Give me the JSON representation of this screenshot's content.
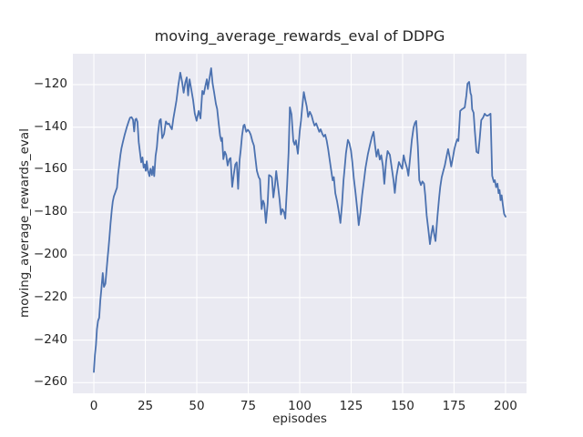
{
  "chart_data": {
    "type": "line",
    "title": "moving_average_rewards_eval of DDPG",
    "xlabel": "episodes",
    "ylabel": "moving_average_rewards_eval",
    "xlim": [
      -10.2,
      210.2
    ],
    "ylim": [
      -265.0,
      -105.5
    ],
    "x_ticks": [
      0,
      25,
      50,
      75,
      100,
      125,
      150,
      175,
      200
    ],
    "x_tick_labels": [
      "0",
      "25",
      "50",
      "75",
      "100",
      "125",
      "150",
      "175",
      "200"
    ],
    "y_ticks": [
      -120,
      -140,
      -160,
      -180,
      -200,
      -220,
      -240,
      -260
    ],
    "y_tick_labels": [
      "−120",
      "−140",
      "−160",
      "−180",
      "−200",
      "−220",
      "−240",
      "−260"
    ],
    "grid": true,
    "legend": "none",
    "style": {
      "line_color": "#4C72B0",
      "plot_bg": "#EAEAF2",
      "grid_color": "#FFFFFF",
      "text_color": "#262626",
      "figure_bg": "#FFFFFF",
      "line_width": 1.8
    },
    "series": [
      {
        "name": "moving_average_rewards_eval",
        "points": [
          [
            0,
            -255
          ],
          [
            0.5,
            -247
          ],
          [
            1,
            -242.5
          ],
          [
            1.5,
            -235
          ],
          [
            2,
            -231
          ],
          [
            2.6,
            -229.5
          ],
          [
            3.1,
            -221.5
          ],
          [
            3.6,
            -216.5
          ],
          [
            4.3,
            -208.5
          ],
          [
            4.9,
            -215
          ],
          [
            5.6,
            -213.5
          ],
          [
            6.1,
            -208
          ],
          [
            6.6,
            -202
          ],
          [
            7.1,
            -197
          ],
          [
            7.6,
            -191.5
          ],
          [
            8.1,
            -185.5
          ],
          [
            8.7,
            -179
          ],
          [
            9.2,
            -175
          ],
          [
            9.7,
            -172.5
          ],
          [
            10.3,
            -171
          ],
          [
            10.8,
            -169.5
          ],
          [
            11.2,
            -168.5
          ],
          [
            11.7,
            -162.5
          ],
          [
            12.3,
            -158
          ],
          [
            12.9,
            -153
          ],
          [
            13.4,
            -150
          ],
          [
            14.1,
            -147
          ],
          [
            15,
            -143.5
          ],
          [
            16,
            -140
          ],
          [
            17,
            -137
          ],
          [
            17.6,
            -135.5
          ],
          [
            18.3,
            -135.3
          ],
          [
            19,
            -136.5
          ],
          [
            19.6,
            -142
          ],
          [
            20.1,
            -136.5
          ],
          [
            20.6,
            -136
          ],
          [
            21.2,
            -137.5
          ],
          [
            21.8,
            -147
          ],
          [
            22.4,
            -152
          ],
          [
            23,
            -156.5
          ],
          [
            23.6,
            -154.2
          ],
          [
            24.2,
            -159
          ],
          [
            24.7,
            -157.5
          ],
          [
            25.2,
            -160.5
          ],
          [
            25.7,
            -156
          ],
          [
            26.2,
            -160
          ],
          [
            27,
            -163
          ],
          [
            27.5,
            -159.5
          ],
          [
            28.2,
            -162.5
          ],
          [
            28.7,
            -158.5
          ],
          [
            29.3,
            -163
          ],
          [
            30,
            -153.5
          ],
          [
            30.6,
            -149.5
          ],
          [
            31.1,
            -143.5
          ],
          [
            31.9,
            -137
          ],
          [
            32.5,
            -136.2
          ],
          [
            33.2,
            -145.2
          ],
          [
            34.1,
            -143.2
          ],
          [
            35,
            -137.3
          ],
          [
            35.8,
            -138.6
          ],
          [
            36.5,
            -138.3
          ],
          [
            37.2,
            -139.8
          ],
          [
            37.9,
            -141
          ],
          [
            38.6,
            -136
          ],
          [
            39.4,
            -131.5
          ],
          [
            40.1,
            -127.5
          ],
          [
            41,
            -120.5
          ],
          [
            42,
            -114.4
          ],
          [
            42.8,
            -118.5
          ],
          [
            43.6,
            -123.8
          ],
          [
            44.4,
            -119
          ],
          [
            45.1,
            -116.6
          ],
          [
            45.8,
            -125.1
          ],
          [
            46.5,
            -117.5
          ],
          [
            47.3,
            -122
          ],
          [
            48.2,
            -127.3
          ],
          [
            49,
            -133.5
          ],
          [
            49.9,
            -137
          ],
          [
            50.9,
            -132.4
          ],
          [
            51.8,
            -135.9
          ],
          [
            52.7,
            -123
          ],
          [
            53.4,
            -124.5
          ],
          [
            54.2,
            -120.5
          ],
          [
            54.9,
            -117.5
          ],
          [
            55.4,
            -122.1
          ],
          [
            56.2,
            -117
          ],
          [
            57,
            -112.3
          ],
          [
            57.7,
            -119.5
          ],
          [
            58.4,
            -123.5
          ],
          [
            59.3,
            -129
          ],
          [
            59.9,
            -131.5
          ],
          [
            60.6,
            -138
          ],
          [
            61.3,
            -144
          ],
          [
            61.9,
            -146.5
          ],
          [
            62.3,
            -145
          ],
          [
            62.9,
            -155
          ],
          [
            63.6,
            -151.5
          ],
          [
            64.3,
            -153
          ],
          [
            65,
            -158
          ],
          [
            65.8,
            -155
          ],
          [
            66.4,
            -154.5
          ],
          [
            67.2,
            -168
          ],
          [
            68,
            -162
          ],
          [
            68.7,
            -157.5
          ],
          [
            69.4,
            -156.5
          ],
          [
            70.1,
            -169
          ],
          [
            70.8,
            -155.5
          ],
          [
            71.3,
            -151
          ],
          [
            72,
            -144
          ],
          [
            72.7,
            -139.3
          ],
          [
            73.2,
            -138.8
          ],
          [
            74,
            -142.2
          ],
          [
            74.8,
            -141.2
          ],
          [
            75.5,
            -142
          ],
          [
            76.2,
            -143.5
          ],
          [
            77,
            -146.5
          ],
          [
            77.8,
            -148.7
          ],
          [
            78.4,
            -154
          ],
          [
            79.2,
            -160.5
          ],
          [
            80.1,
            -163.5
          ],
          [
            80.7,
            -164.5
          ],
          [
            81.5,
            -178.5
          ],
          [
            82.2,
            -174.5
          ],
          [
            82.8,
            -176
          ],
          [
            83.6,
            -185
          ],
          [
            84.4,
            -176
          ],
          [
            85.1,
            -162.5
          ],
          [
            86,
            -163
          ],
          [
            86.5,
            -163.8
          ],
          [
            87.2,
            -173
          ],
          [
            88,
            -167
          ],
          [
            88.6,
            -160.6
          ],
          [
            89.4,
            -167
          ],
          [
            90.2,
            -174
          ],
          [
            90.9,
            -181
          ],
          [
            91.6,
            -178.5
          ],
          [
            92.4,
            -180
          ],
          [
            93,
            -183
          ],
          [
            93.9,
            -167
          ],
          [
            94.6,
            -152
          ],
          [
            95.2,
            -130.7
          ],
          [
            96,
            -134
          ],
          [
            96.9,
            -146.5
          ],
          [
            97.5,
            -148.2
          ],
          [
            98.2,
            -146.2
          ],
          [
            99.1,
            -152.5
          ],
          [
            100,
            -142
          ],
          [
            100.6,
            -137
          ],
          [
            101.2,
            -131
          ],
          [
            102,
            -123.5
          ],
          [
            102.7,
            -127
          ],
          [
            103.4,
            -130.2
          ],
          [
            104.1,
            -135.2
          ],
          [
            104.9,
            -132.8
          ],
          [
            105.8,
            -134.6
          ],
          [
            106.5,
            -137.2
          ],
          [
            107.2,
            -139.3
          ],
          [
            108,
            -138.2
          ],
          [
            108.8,
            -140.3
          ],
          [
            109.5,
            -142.2
          ],
          [
            110.2,
            -141
          ],
          [
            111,
            -143.2
          ],
          [
            111.7,
            -144.4
          ],
          [
            112.4,
            -143.5
          ],
          [
            113.1,
            -146.2
          ],
          [
            113.8,
            -150.2
          ],
          [
            114.5,
            -155
          ],
          [
            115.2,
            -159.5
          ],
          [
            116,
            -165
          ],
          [
            116.6,
            -163.5
          ],
          [
            117.3,
            -171
          ],
          [
            118.1,
            -174.5
          ],
          [
            119,
            -179.5
          ],
          [
            119.8,
            -185
          ],
          [
            120.6,
            -176
          ],
          [
            121.3,
            -165
          ],
          [
            121.8,
            -159.5
          ],
          [
            122.5,
            -152.2
          ],
          [
            123.4,
            -146
          ],
          [
            124.1,
            -147.5
          ],
          [
            124.9,
            -151
          ],
          [
            125.6,
            -156.5
          ],
          [
            126.3,
            -164
          ],
          [
            127.1,
            -170.5
          ],
          [
            128,
            -179
          ],
          [
            128.7,
            -186
          ],
          [
            129.5,
            -180
          ],
          [
            130.3,
            -172
          ],
          [
            131.1,
            -166
          ],
          [
            132,
            -159
          ],
          [
            133.1,
            -152.8
          ],
          [
            134.2,
            -148
          ],
          [
            135.1,
            -144.5
          ],
          [
            135.9,
            -142.2
          ],
          [
            136.6,
            -148.5
          ],
          [
            137.3,
            -153.8
          ],
          [
            138.1,
            -150.5
          ],
          [
            138.9,
            -155.2
          ],
          [
            139.6,
            -153.2
          ],
          [
            140.4,
            -158.2
          ],
          [
            141.1,
            -166.6
          ],
          [
            142,
            -156
          ],
          [
            142.7,
            -151.2
          ],
          [
            143.8,
            -153
          ],
          [
            144.7,
            -159
          ],
          [
            145.6,
            -165
          ],
          [
            146.2,
            -170.9
          ],
          [
            147,
            -163
          ],
          [
            148.2,
            -156.4
          ],
          [
            149,
            -158
          ],
          [
            149.8,
            -159.5
          ],
          [
            150.5,
            -153.2
          ],
          [
            151.2,
            -156.2
          ],
          [
            152.2,
            -159.4
          ],
          [
            152.8,
            -162.8
          ],
          [
            153.7,
            -154
          ],
          [
            154.5,
            -146
          ],
          [
            155.3,
            -140.2
          ],
          [
            156,
            -138
          ],
          [
            156.6,
            -137.1
          ],
          [
            157.4,
            -149
          ],
          [
            158.1,
            -164.9
          ],
          [
            158.9,
            -167.2
          ],
          [
            159.6,
            -165.5
          ],
          [
            160.4,
            -166.5
          ],
          [
            161,
            -172
          ],
          [
            161.7,
            -181.5
          ],
          [
            162.5,
            -188
          ],
          [
            163.3,
            -194.9
          ],
          [
            164,
            -190
          ],
          [
            164.7,
            -186.3
          ],
          [
            165.3,
            -190
          ],
          [
            166,
            -193.5
          ],
          [
            166.9,
            -182
          ],
          [
            167.7,
            -173.4
          ],
          [
            168.3,
            -168
          ],
          [
            169,
            -163.5
          ],
          [
            169.8,
            -160.5
          ],
          [
            170.5,
            -158
          ],
          [
            171.3,
            -154
          ],
          [
            172.1,
            -150.3
          ],
          [
            172.9,
            -154.2
          ],
          [
            173.6,
            -158.5
          ],
          [
            174.4,
            -154.5
          ],
          [
            175.1,
            -150.5
          ],
          [
            175.8,
            -147.8
          ],
          [
            176.5,
            -145.7
          ],
          [
            177.1,
            -146.5
          ],
          [
            178,
            -132.4
          ],
          [
            178.8,
            -131.6
          ],
          [
            179.5,
            -131.2
          ],
          [
            180.2,
            -130.7
          ],
          [
            181,
            -125
          ],
          [
            181.5,
            -119.6
          ],
          [
            182.3,
            -118.7
          ],
          [
            183,
            -124
          ],
          [
            183.4,
            -125.1
          ],
          [
            183.8,
            -131.6
          ],
          [
            184.5,
            -133.2
          ],
          [
            185.1,
            -142
          ],
          [
            185.9,
            -151.6
          ],
          [
            186.8,
            -152.2
          ],
          [
            187.5,
            -145
          ],
          [
            188.2,
            -136.7
          ],
          [
            189.1,
            -135.5
          ],
          [
            189.9,
            -133.7
          ],
          [
            190.6,
            -134.5
          ],
          [
            191.3,
            -134.6
          ],
          [
            192,
            -134.2
          ],
          [
            192.7,
            -133.7
          ],
          [
            193.5,
            -162.8
          ],
          [
            194.3,
            -165.8
          ],
          [
            194.8,
            -164.9
          ],
          [
            195.4,
            -168.2
          ],
          [
            196.1,
            -166.5
          ],
          [
            196.6,
            -171
          ],
          [
            197.1,
            -169.5
          ],
          [
            197.6,
            -174.3
          ],
          [
            198.1,
            -172
          ],
          [
            198.7,
            -176.5
          ],
          [
            199.3,
            -180.7
          ],
          [
            200,
            -182
          ]
        ]
      }
    ]
  }
}
